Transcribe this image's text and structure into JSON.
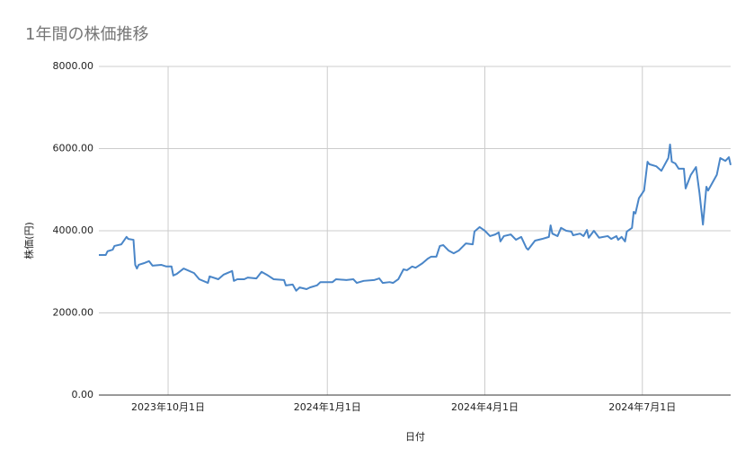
{
  "chart_data": {
    "type": "line",
    "title": "1年間の株価推移",
    "xlabel": "日付",
    "ylabel": "株価(円)",
    "x": [
      "2023-08-22",
      "2023-08-26",
      "2023-08-27",
      "2023-08-30",
      "2023-08-31",
      "2023-09-04",
      "2023-09-07",
      "2023-09-08",
      "2023-09-11",
      "2023-09-12",
      "2023-09-13",
      "2023-09-14",
      "2023-09-17",
      "2023-09-20",
      "2023-09-22",
      "2023-09-27",
      "2023-09-30",
      "2023-10-03",
      "2023-10-04",
      "2023-10-06",
      "2023-10-10",
      "2023-10-16",
      "2023-10-19",
      "2023-10-24",
      "2023-10-25",
      "2023-10-30",
      "2023-11-02",
      "2023-11-07",
      "2023-11-08",
      "2023-11-10",
      "2023-11-14",
      "2023-11-16",
      "2023-11-21",
      "2023-11-24",
      "2023-11-27",
      "2023-12-01",
      "2023-12-07",
      "2023-12-08",
      "2023-12-12",
      "2023-12-14",
      "2023-12-16",
      "2023-12-20",
      "2023-12-22",
      "2023-12-26",
      "2023-12-28",
      "2024-01-04",
      "2024-01-06",
      "2024-01-12",
      "2024-01-16",
      "2024-01-18",
      "2024-01-22",
      "2024-01-28",
      "2024-01-31",
      "2024-02-02",
      "2024-02-06",
      "2024-02-08",
      "2024-02-11",
      "2024-02-14",
      "2024-02-16",
      "2024-02-19",
      "2024-02-21",
      "2024-02-25",
      "2024-02-28",
      "2024-03-01",
      "2024-03-04",
      "2024-03-06",
      "2024-03-08",
      "2024-03-11",
      "2024-03-14",
      "2024-03-17",
      "2024-03-21",
      "2024-03-25",
      "2024-03-26",
      "2024-03-29",
      "2024-04-01",
      "2024-04-04",
      "2024-04-07",
      "2024-04-09",
      "2024-04-10",
      "2024-04-12",
      "2024-04-16",
      "2024-04-19",
      "2024-04-22",
      "2024-04-25",
      "2024-04-26",
      "2024-04-30",
      "2024-05-04",
      "2024-05-08",
      "2024-05-09",
      "2024-05-10",
      "2024-05-13",
      "2024-05-15",
      "2024-05-18",
      "2024-05-21",
      "2024-05-22",
      "2024-05-26",
      "2024-05-28",
      "2024-05-30",
      "2024-05-31",
      "2024-06-03",
      "2024-06-06",
      "2024-06-11",
      "2024-06-13",
      "2024-06-16",
      "2024-06-17",
      "2024-06-19",
      "2024-06-21",
      "2024-06-22",
      "2024-06-25",
      "2024-06-26",
      "2024-06-27",
      "2024-06-29",
      "2024-07-02",
      "2024-07-04",
      "2024-07-05",
      "2024-07-09",
      "2024-07-12",
      "2024-07-16",
      "2024-07-17",
      "2024-07-18",
      "2024-07-20",
      "2024-07-22",
      "2024-07-25",
      "2024-07-26",
      "2024-07-29",
      "2024-08-01",
      "2024-08-03",
      "2024-08-05",
      "2024-08-07",
      "2024-08-08",
      "2024-08-13",
      "2024-08-15",
      "2024-08-18",
      "2024-08-20",
      "2024-08-21"
    ],
    "series": [
      {
        "name": "株価(円)",
        "color": "#4a86c8",
        "values": [
          3410,
          3410,
          3500,
          3540,
          3630,
          3670,
          3850,
          3800,
          3780,
          3170,
          3080,
          3170,
          3210,
          3260,
          3150,
          3170,
          3130,
          3130,
          2910,
          2950,
          3080,
          2970,
          2820,
          2730,
          2890,
          2820,
          2930,
          3020,
          2780,
          2820,
          2820,
          2860,
          2840,
          3000,
          2930,
          2820,
          2800,
          2670,
          2690,
          2540,
          2620,
          2580,
          2620,
          2670,
          2750,
          2750,
          2820,
          2800,
          2820,
          2730,
          2780,
          2800,
          2840,
          2730,
          2750,
          2730,
          2820,
          3060,
          3040,
          3130,
          3100,
          3210,
          3320,
          3370,
          3370,
          3630,
          3650,
          3520,
          3450,
          3520,
          3690,
          3670,
          3980,
          4090,
          4000,
          3870,
          3910,
          3960,
          3740,
          3870,
          3910,
          3780,
          3850,
          3580,
          3540,
          3760,
          3800,
          3850,
          4130,
          3930,
          3870,
          4070,
          4000,
          3980,
          3890,
          3930,
          3870,
          4020,
          3830,
          4000,
          3830,
          3870,
          3800,
          3870,
          3780,
          3850,
          3740,
          3980,
          4070,
          4460,
          4420,
          4790,
          4980,
          5680,
          5620,
          5570,
          5460,
          5770,
          6100,
          5680,
          5640,
          5510,
          5510,
          5030,
          5360,
          5550,
          4920,
          4150,
          5070,
          4980,
          5360,
          5770,
          5700,
          5790,
          5600
        ]
      }
    ],
    "xlim": [
      "2023-08-22",
      "2024-08-21"
    ],
    "xticks": [
      {
        "value": "2023-10-01",
        "label": "2023年10月1日"
      },
      {
        "value": "2024-01-01",
        "label": "2024年1月1日"
      },
      {
        "value": "2024-04-01",
        "label": "2024年4月1日"
      },
      {
        "value": "2024-07-01",
        "label": "2024年7月1日"
      }
    ],
    "ylim": [
      0,
      8000
    ],
    "yticks": [
      {
        "value": 0,
        "label": "0.00"
      },
      {
        "value": 2000,
        "label": "2000.00"
      },
      {
        "value": 4000,
        "label": "4000.00"
      },
      {
        "value": 6000,
        "label": "6000.00"
      },
      {
        "value": 8000,
        "label": "8000.00"
      }
    ],
    "grid": true
  }
}
